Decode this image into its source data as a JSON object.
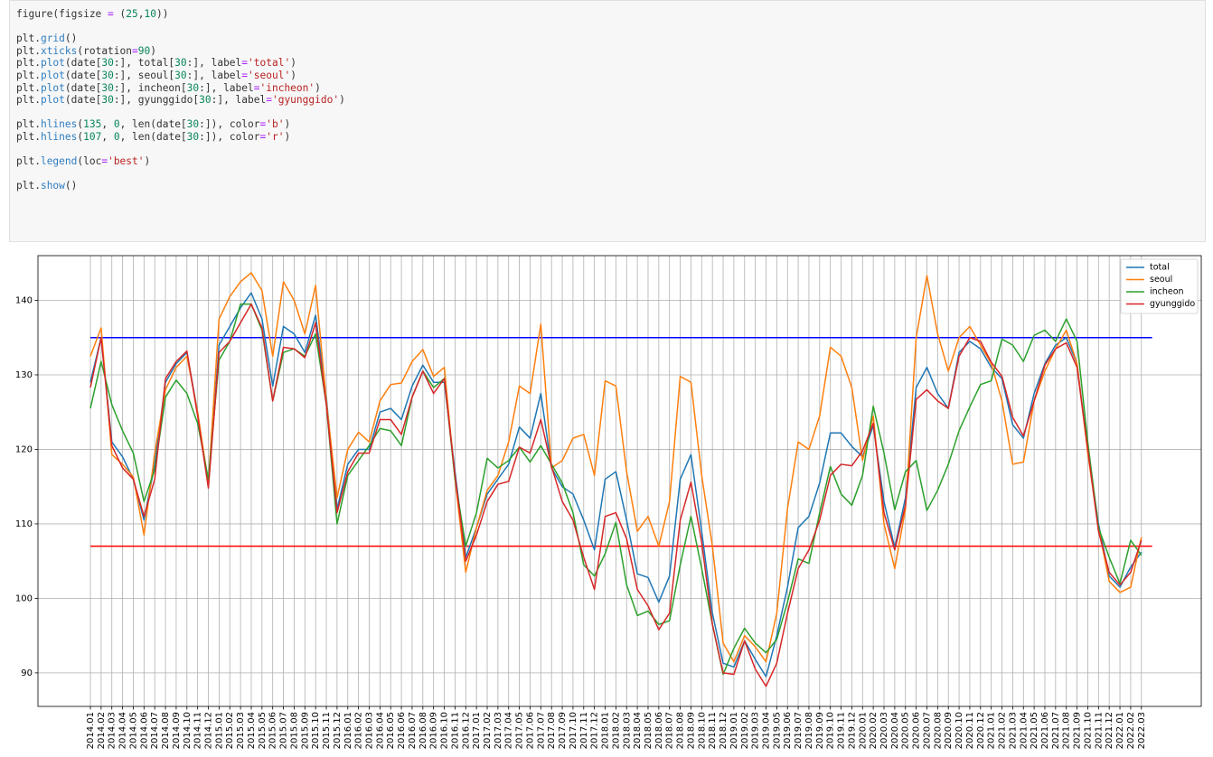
{
  "code": {
    "lines": [
      "figure(figsize = (25,10))",
      "",
      "plt.grid()",
      "plt.xticks(rotation=90)",
      "plt.plot(date[30:], total[30:], label='total')",
      "plt.plot(date[30:], seoul[30:], label='seoul')",
      "plt.plot(date[30:], incheon[30:], label='incheon')",
      "plt.plot(date[30:], gyunggido[30:], label='gyunggido')",
      "",
      "plt.hlines(135, 0, len(date[30:]), color='b')",
      "plt.hlines(107, 0, len(date[30:]), color='r')",
      "",
      "plt.legend(loc='best')",
      "",
      "plt.show()"
    ]
  },
  "chart_data": {
    "type": "line",
    "title": "",
    "xlabel": "",
    "ylabel": "",
    "ylim": [
      85.5,
      146
    ],
    "yticks": [
      90,
      100,
      110,
      120,
      130,
      140
    ],
    "grid": true,
    "legend": "top-right",
    "colors": {
      "total": "#1f77b4",
      "seoul": "#ff7f0e",
      "incheon": "#2ca02c",
      "gyunggido": "#d62728",
      "hline_b": "#0000ff",
      "hline_r": "#ff0000"
    },
    "hlines": [
      {
        "y": 135,
        "color": "b"
      },
      {
        "y": 107,
        "color": "r"
      }
    ],
    "categories": [
      "2014.01",
      "2014.02",
      "2014.03",
      "2014.04",
      "2014.05",
      "2014.06",
      "2014.07",
      "2014.08",
      "2014.09",
      "2014.10",
      "2014.11",
      "2014.12",
      "2015.01",
      "2015.02",
      "2015.03",
      "2015.04",
      "2015.05",
      "2015.06",
      "2015.07",
      "2015.08",
      "2015.09",
      "2015.10",
      "2015.11",
      "2015.12",
      "2016.01",
      "2016.02",
      "2016.03",
      "2016.04",
      "2016.05",
      "2016.06",
      "2016.07",
      "2016.08",
      "2016.09",
      "2016.10",
      "2016.11",
      "2016.12",
      "2017.01",
      "2017.02",
      "2017.03",
      "2017.04",
      "2017.05",
      "2017.06",
      "2017.07",
      "2017.08",
      "2017.09",
      "2017.10",
      "2017.11",
      "2017.12",
      "2018.01",
      "2018.02",
      "2018.03",
      "2018.04",
      "2018.05",
      "2018.06",
      "2018.07",
      "2018.08",
      "2018.09",
      "2018.10",
      "2018.11",
      "2018.12",
      "2019.01",
      "2019.02",
      "2019.03",
      "2019.04",
      "2019.05",
      "2019.06",
      "2019.07",
      "2019.08",
      "2019.09",
      "2019.10",
      "2019.11",
      "2019.12",
      "2020.01",
      "2020.02",
      "2020.03",
      "2020.04",
      "2020.05",
      "2020.06",
      "2020.07",
      "2020.08",
      "2020.09",
      "2020.10",
      "2020.11",
      "2020.12",
      "2021.01",
      "2021.02",
      "2021.03",
      "2021.04",
      "2021.05",
      "2021.06",
      "2021.07",
      "2021.08",
      "2021.09",
      "2021.10",
      "2021.11",
      "2021.12",
      "2022.01",
      "2022.02",
      "2022.03"
    ],
    "series": [
      {
        "name": "total",
        "values": [
          129,
          135,
          121,
          119,
          116,
          110.5,
          118,
          129,
          131.5,
          133,
          125,
          115,
          134,
          136.5,
          139,
          141,
          137.5,
          128.5,
          136.5,
          135.5,
          133,
          138,
          127,
          112,
          118,
          120,
          120,
          125,
          125.5,
          124,
          128.5,
          131.3,
          129,
          129,
          117,
          105.5,
          109.5,
          114,
          116,
          118,
          123,
          121.5,
          127.5,
          117.5,
          115,
          114,
          110.5,
          106.5,
          116,
          117,
          110.5,
          103.3,
          102.8,
          99.5,
          103,
          116,
          119.3,
          109,
          98,
          91.3,
          90.8,
          94.3,
          91.8,
          89.5,
          95,
          101.5,
          109.5,
          111,
          115.5,
          122.2,
          122.2,
          120.4,
          119,
          123.2,
          113,
          106.8,
          113.5,
          128.3,
          131,
          127.5,
          125.5,
          133,
          134.5,
          133.5,
          131,
          129.5,
          123.3,
          121.5,
          127.5,
          131.5,
          134,
          135,
          131.5,
          120,
          110,
          103,
          101.5,
          104.2,
          106.2
        ]
      },
      {
        "name": "seoul",
        "values": [
          132.5,
          136.3,
          119.3,
          118,
          116.3,
          108.5,
          119.5,
          128,
          131,
          132.5,
          125,
          115.5,
          137.5,
          140.5,
          142.5,
          143.7,
          141.3,
          132.5,
          142.5,
          140,
          135.5,
          142,
          126.5,
          113.5,
          120,
          122.3,
          121,
          126.5,
          128.7,
          128.9,
          131.8,
          133.4,
          129.8,
          131,
          116,
          103.5,
          109.5,
          114.5,
          116.5,
          121,
          128.5,
          127.5,
          136.8,
          117.5,
          118.5,
          121.5,
          122,
          116.5,
          129.2,
          128.5,
          117,
          109,
          111,
          107,
          113,
          129.8,
          129,
          116.5,
          107,
          94,
          91.5,
          95,
          93.5,
          91.5,
          98,
          112,
          121,
          120,
          124.5,
          133.7,
          132.5,
          128.3,
          118.5,
          124.5,
          110,
          104,
          112,
          135,
          143.3,
          135.5,
          130.5,
          135,
          136.5,
          134,
          131.5,
          126.5,
          118,
          118.3,
          126.5,
          130.5,
          133.5,
          136,
          131.5,
          119.5,
          109.5,
          102.3,
          100.8,
          101.5,
          108.2
        ]
      },
      {
        "name": "incheon",
        "values": [
          125.5,
          131.8,
          126,
          122.5,
          119.5,
          113,
          117.3,
          127,
          129.3,
          127.5,
          123.5,
          116,
          132,
          134.5,
          139.5,
          139.5,
          136,
          126.5,
          133,
          133.5,
          132.5,
          135.5,
          126,
          110,
          116.5,
          118.5,
          120.5,
          122.8,
          122.5,
          120.5,
          127,
          130.5,
          128.3,
          129.5,
          116,
          107,
          111.5,
          118.8,
          117.5,
          118.5,
          120.3,
          118.3,
          120.5,
          118,
          115.5,
          111.5,
          104.5,
          103,
          106,
          110.2,
          101.8,
          97.7,
          98.3,
          96.5,
          97,
          104.5,
          111,
          104,
          96.5,
          89.8,
          93.3,
          96,
          94,
          92.7,
          94.5,
          99.5,
          105.3,
          104.7,
          111.5,
          117.7,
          114,
          112.5,
          116.5,
          125.8,
          119.5,
          111.9,
          117,
          118.5,
          111.8,
          114.5,
          118,
          122.5,
          125.7,
          128.7,
          129.2,
          134.8,
          134,
          131.8,
          135.3,
          136,
          134.5,
          137.5,
          134.5,
          121,
          109.5,
          105.5,
          102,
          107.8,
          105.8
        ]
      },
      {
        "name": "gyunggido",
        "values": [
          128.3,
          135,
          120.5,
          117.5,
          116,
          111,
          116,
          129.5,
          131.8,
          133.2,
          124.5,
          114.8,
          133,
          134.5,
          137,
          139.5,
          136.3,
          126.5,
          133.7,
          133.5,
          132.3,
          137,
          126,
          111.5,
          117,
          119.5,
          119.5,
          124,
          124,
          122,
          127,
          130.5,
          127.5,
          129.5,
          116.5,
          105,
          108.5,
          113,
          115.3,
          115.7,
          120.3,
          119.5,
          124,
          117.7,
          113,
          110.5,
          105.5,
          101.2,
          111,
          111.5,
          108,
          101.2,
          99,
          95.8,
          98,
          110.5,
          115.6,
          107.5,
          96.5,
          90,
          89.8,
          94.3,
          90.5,
          88.2,
          91.3,
          98,
          104,
          106.5,
          110.5,
          116.5,
          118,
          117.8,
          119.8,
          123.5,
          111.5,
          106.5,
          112.5,
          126.7,
          128,
          126.5,
          125.5,
          132.5,
          135,
          134.5,
          131.7,
          129.8,
          124.3,
          121.8,
          126.5,
          131.3,
          133.5,
          134.3,
          131,
          120,
          109,
          103.5,
          101.8,
          103.5,
          107.8
        ]
      }
    ]
  }
}
